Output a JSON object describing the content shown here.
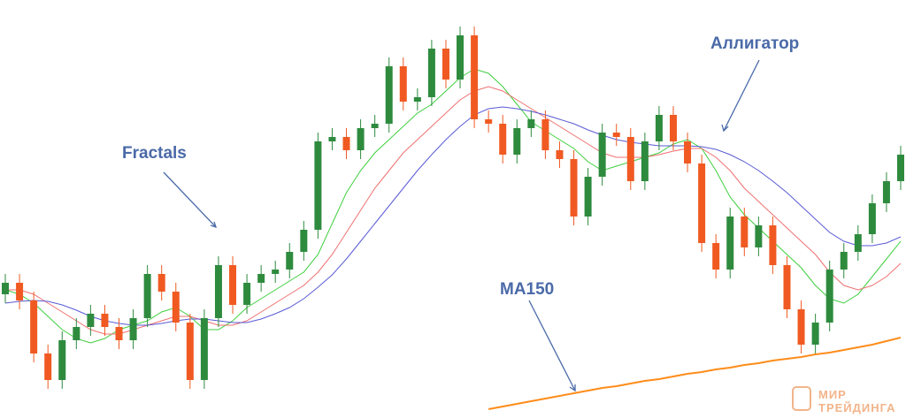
{
  "chart_data": {
    "type": "candlestick",
    "annotations": [
      "Fractals",
      "Аллигатор",
      "MA150"
    ],
    "watermark": [
      "МИР",
      "ТРЕЙДИНГА"
    ],
    "ylim": [
      0,
      473
    ],
    "up_color": "#2e8b3e",
    "down_color": "#f05a22",
    "open": [
      140,
      153,
      133,
      73,
      43,
      88,
      103,
      118,
      103,
      88,
      113,
      163,
      143,
      108,
      43,
      113,
      173,
      128,
      153,
      163,
      168,
      188,
      213,
      313,
      318,
      303,
      328,
      333,
      398,
      358,
      363,
      418,
      383,
      433,
      338,
      333,
      298,
      328,
      338,
      303,
      293,
      228,
      273,
      323,
      318,
      268,
      313,
      343,
      313,
      288,
      198,
      168,
      228,
      193,
      218,
      173,
      123,
      83,
      108,
      168,
      188,
      208,
      243,
      268
    ],
    "high": [
      163,
      163,
      143,
      83,
      98,
      113,
      128,
      128,
      113,
      123,
      173,
      173,
      153,
      118,
      123,
      183,
      183,
      163,
      173,
      178,
      198,
      223,
      323,
      328,
      328,
      338,
      343,
      408,
      408,
      373,
      428,
      428,
      443,
      443,
      348,
      343,
      338,
      348,
      348,
      313,
      303,
      283,
      333,
      333,
      328,
      323,
      353,
      353,
      323,
      298,
      208,
      238,
      238,
      228,
      228,
      183,
      133,
      118,
      178,
      198,
      218,
      253,
      278,
      308
    ],
    "low": [
      130,
      123,
      63,
      33,
      33,
      78,
      93,
      93,
      78,
      78,
      103,
      133,
      98,
      33,
      33,
      103,
      118,
      118,
      143,
      153,
      158,
      178,
      203,
      303,
      293,
      293,
      318,
      323,
      348,
      348,
      353,
      373,
      373,
      328,
      323,
      288,
      288,
      318,
      293,
      283,
      218,
      218,
      263,
      308,
      258,
      258,
      303,
      303,
      278,
      188,
      158,
      158,
      183,
      183,
      163,
      113,
      73,
      73,
      98,
      158,
      178,
      198,
      233,
      258
    ],
    "close": [
      153,
      133,
      73,
      43,
      88,
      103,
      118,
      103,
      88,
      113,
      163,
      143,
      108,
      43,
      113,
      173,
      128,
      153,
      163,
      168,
      188,
      213,
      313,
      318,
      303,
      328,
      333,
      398,
      358,
      363,
      418,
      383,
      433,
      338,
      333,
      298,
      328,
      338,
      303,
      293,
      228,
      273,
      323,
      318,
      268,
      313,
      343,
      313,
      288,
      198,
      168,
      228,
      193,
      218,
      173,
      123,
      83,
      108,
      168,
      188,
      208,
      243,
      268,
      298
    ],
    "overlays": [
      {
        "color": "#3fcf3f",
        "values": [
          145,
          140,
          130,
          115,
          100,
          90,
          85,
          90,
          100,
          105,
          110,
          120,
          125,
          115,
          100,
          100,
          110,
          125,
          135,
          145,
          155,
          165,
          185,
          220,
          255,
          280,
          300,
          315,
          330,
          345,
          355,
          370,
          385,
          395,
          390,
          375,
          355,
          335,
          325,
          315,
          305,
          290,
          280,
          285,
          290,
          295,
          300,
          310,
          315,
          305,
          280,
          250,
          230,
          215,
          200,
          185,
          170,
          150,
          135,
          130,
          140,
          160,
          180,
          200
        ]
      },
      {
        "color": "#f07070",
        "values": [
          145,
          145,
          140,
          130,
          120,
          110,
          100,
          95,
          95,
          100,
          105,
          110,
          115,
          115,
          110,
          105,
          105,
          110,
          120,
          130,
          140,
          150,
          165,
          185,
          210,
          235,
          260,
          280,
          300,
          315,
          330,
          345,
          360,
          370,
          375,
          370,
          360,
          350,
          340,
          330,
          320,
          310,
          300,
          295,
          295,
          295,
          298,
          302,
          305,
          305,
          295,
          280,
          260,
          245,
          230,
          215,
          200,
          185,
          165,
          150,
          145,
          150,
          160,
          175
        ]
      },
      {
        "color": "#5a5ad6",
        "values": [
          130,
          132,
          133,
          132,
          128,
          122,
          115,
          110,
          107,
          105,
          105,
          107,
          110,
          112,
          112,
          110,
          108,
          108,
          112,
          118,
          125,
          135,
          148,
          162,
          180,
          200,
          220,
          240,
          260,
          280,
          298,
          315,
          330,
          343,
          350,
          352,
          350,
          347,
          343,
          338,
          333,
          326,
          320,
          315,
          312,
          310,
          308,
          308,
          308,
          307,
          304,
          298,
          290,
          280,
          268,
          255,
          240,
          225,
          210,
          200,
          195,
          195,
          198,
          205
        ]
      },
      {
        "color": "#ff8c1a",
        "values": [
          null,
          null,
          null,
          null,
          null,
          null,
          null,
          null,
          null,
          null,
          null,
          null,
          null,
          null,
          null,
          null,
          null,
          null,
          null,
          null,
          null,
          null,
          null,
          null,
          null,
          null,
          null,
          null,
          null,
          null,
          null,
          null,
          null,
          null,
          10,
          13,
          16,
          19,
          22,
          25,
          28,
          31,
          34,
          36,
          39,
          42,
          44,
          47,
          50,
          52,
          55,
          57,
          60,
          62,
          65,
          67,
          69,
          72,
          74,
          77,
          80,
          83,
          87,
          91
        ]
      }
    ]
  }
}
